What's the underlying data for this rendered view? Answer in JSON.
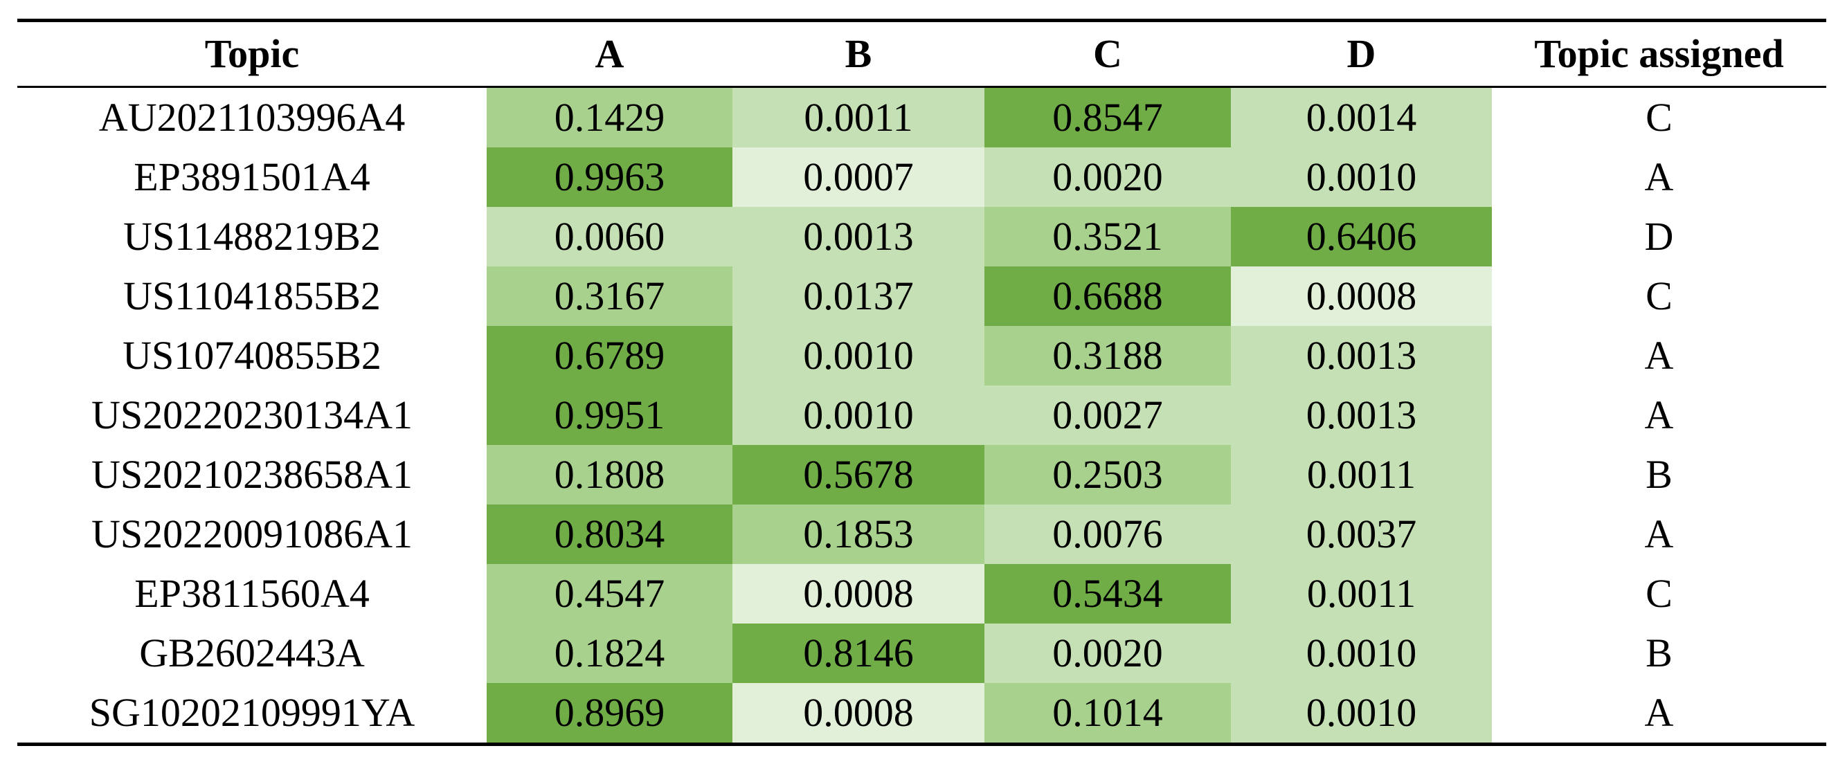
{
  "table": {
    "header": [
      "Topic",
      "A",
      "B",
      "C",
      "D",
      "Topic assigned"
    ],
    "palette": {
      "dark": "#70ad47",
      "medium": "#a9d18e",
      "light": "#c5e0b4",
      "lightest": "#e2f0d9"
    },
    "rows": [
      [
        "AU2021103996A4",
        "0.1429",
        "0.0011",
        "0.8547",
        "0.0014",
        "C"
      ],
      [
        "EP3891501A4",
        "0.9963",
        "0.0007",
        "0.0020",
        "0.0010",
        "A"
      ],
      [
        "US11488219B2",
        "0.0060",
        "0.0013",
        "0.3521",
        "0.6406",
        "D"
      ],
      [
        "US11041855B2",
        "0.3167",
        "0.0137",
        "0.6688",
        "0.0008",
        "C"
      ],
      [
        "US10740855B2",
        "0.6789",
        "0.0010",
        "0.3188",
        "0.0013",
        "A"
      ],
      [
        "US20220230134A1",
        "0.9951",
        "0.0010",
        "0.0027",
        "0.0013",
        "A"
      ],
      [
        "US20210238658A1",
        "0.1808",
        "0.5678",
        "0.2503",
        "0.0011",
        "B"
      ],
      [
        "US20220091086A1",
        "0.8034",
        "0.1853",
        "0.0076",
        "0.0037",
        "A"
      ],
      [
        "EP3811560A4",
        "0.4547",
        "0.0008",
        "0.5434",
        "0.0011",
        "C"
      ],
      [
        "GB2602443A",
        "0.1824",
        "0.8146",
        "0.0020",
        "0.0010",
        "B"
      ],
      [
        "SG10202109991YA",
        "0.8969",
        "0.0008",
        "0.1014",
        "0.0010",
        "A"
      ]
    ],
    "shades": [
      [
        "medium",
        "light",
        "dark",
        "light"
      ],
      [
        "dark",
        "lightest",
        "light",
        "light"
      ],
      [
        "light",
        "light",
        "medium",
        "dark"
      ],
      [
        "medium",
        "light",
        "dark",
        "lightest"
      ],
      [
        "dark",
        "light",
        "medium",
        "light"
      ],
      [
        "dark",
        "light",
        "light",
        "light"
      ],
      [
        "medium",
        "dark",
        "medium",
        "light"
      ],
      [
        "dark",
        "medium",
        "light",
        "light"
      ],
      [
        "medium",
        "lightest",
        "dark",
        "light"
      ],
      [
        "medium",
        "dark",
        "light",
        "light"
      ],
      [
        "dark",
        "lightest",
        "medium",
        "light"
      ]
    ]
  }
}
